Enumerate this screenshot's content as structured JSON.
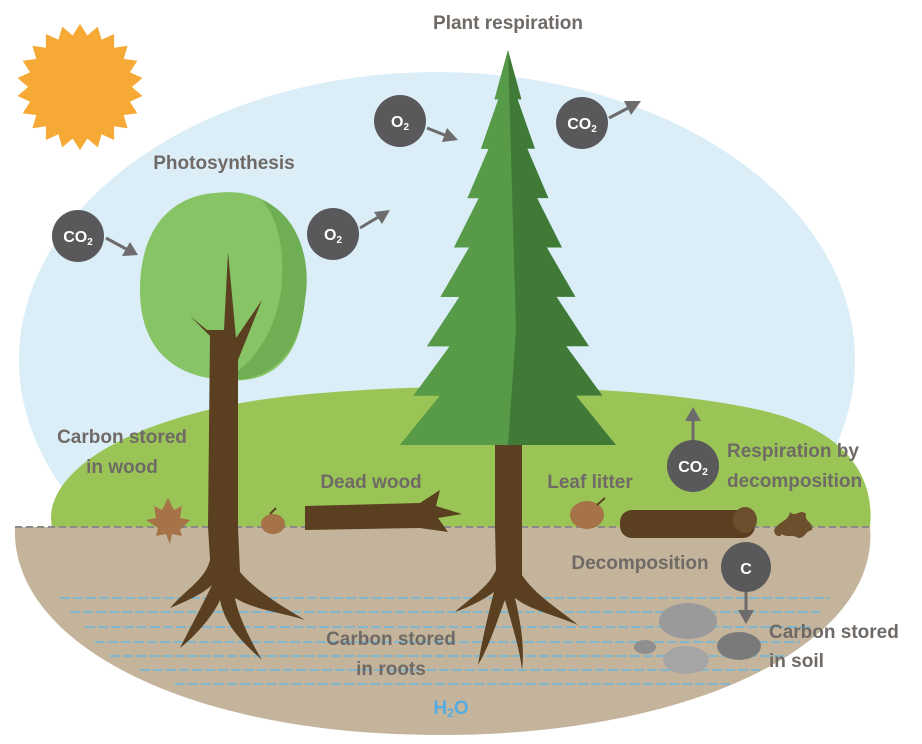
{
  "title": "Plant respiration",
  "labels": {
    "photosynthesis": "Photosynthesis",
    "plant_respiration": "Plant respiration",
    "carbon_wood_1": "Carbon stored",
    "carbon_wood_2": "in wood",
    "dead_wood": "Dead wood",
    "leaf_litter": "Leaf litter",
    "resp_decomp_1": "Respiration by",
    "resp_decomp_2": "decomposition",
    "decomposition": "Decomposition",
    "carbon_roots_1": "Carbon stored",
    "carbon_roots_2": "in roots",
    "carbon_soil_1": "Carbon stored",
    "carbon_soil_2": "in soil"
  },
  "badges": {
    "co2_in": {
      "main": "CO",
      "sub": "2"
    },
    "o2_out": {
      "main": "O",
      "sub": "2"
    },
    "o2_in": {
      "main": "O",
      "sub": "2"
    },
    "co2_out": {
      "main": "CO",
      "sub": "2"
    },
    "co2_decomp": {
      "main": "CO",
      "sub": "2"
    },
    "carbon": {
      "main": "C"
    }
  },
  "water": {
    "main": "H",
    "sub": "2",
    "tail": "O"
  },
  "colors": {
    "sky": "#dbeef8",
    "hill": "#9ac556",
    "soil": "#c4b49c",
    "trunk": "#5a4021",
    "pine_dark": "#3f7a37",
    "pine_light": "#579a47",
    "canopy": "#86c466",
    "canopy_shade": "#6fae53",
    "sun": "#f7a935",
    "badge": "#59585a",
    "arrow": "#6d6b6b",
    "label": "#6f6a66",
    "water_lines": "#6bb7dd",
    "water_text": "#55ace0"
  }
}
